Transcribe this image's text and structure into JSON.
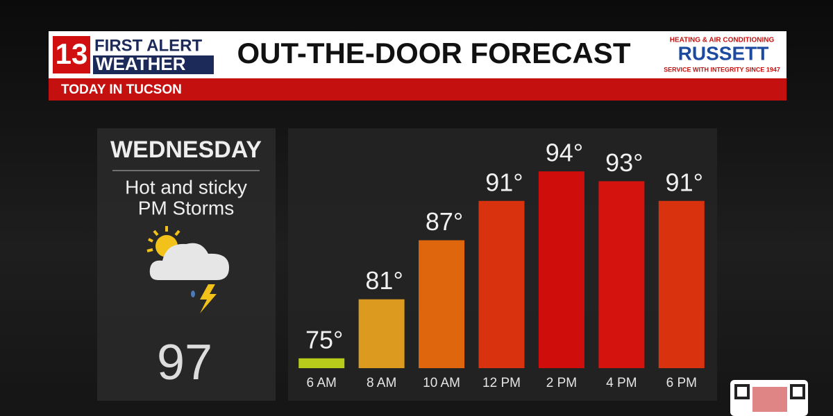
{
  "header": {
    "logo_number": "13",
    "logo_line1": "FIRST ALERT",
    "logo_line2": "WEATHER",
    "title": "OUT-THE-DOOR FORECAST",
    "subtitle": "TODAY IN TUCSON",
    "sponsor_top": "HEATING & AIR CONDITIONING",
    "sponsor_name": "RUSSETT",
    "sponsor_bottom": "SERVICE WITH INTEGRITY SINCE 1947"
  },
  "day_panel": {
    "day": "WEDNESDAY",
    "line1": "Hot and sticky",
    "line2": "PM Storms",
    "high": "97"
  },
  "chart_data": {
    "type": "bar",
    "categories": [
      "6 AM",
      "8 AM",
      "10 AM",
      "12 PM",
      "2 PM",
      "4 PM",
      "6 PM"
    ],
    "values": [
      75,
      81,
      87,
      91,
      94,
      93,
      91
    ],
    "value_labels": [
      "75°",
      "81°",
      "87°",
      "91°",
      "94°",
      "93°",
      "91°"
    ],
    "colors": [
      "#b8cc1c",
      "#dc9a1e",
      "#e0660e",
      "#d8320e",
      "#cf0e0c",
      "#d4120e",
      "#d8320e"
    ],
    "ylim": [
      74,
      95
    ]
  }
}
